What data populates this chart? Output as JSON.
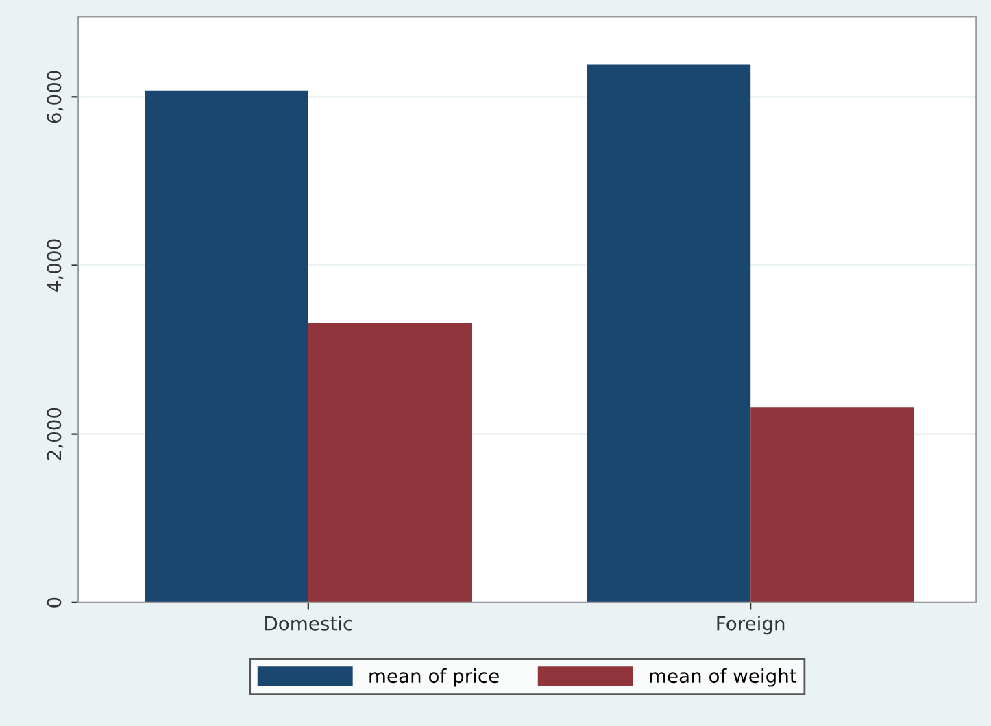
{
  "chart_data": {
    "type": "bar",
    "categories": [
      "Domestic",
      "Foreign"
    ],
    "series": [
      {
        "name": "mean of price",
        "color": "#1a476f",
        "values": [
          6070,
          6380
        ]
      },
      {
        "name": "mean of weight",
        "color": "#90353b",
        "values": [
          3320,
          2320
        ]
      }
    ],
    "ylim": [
      0,
      6950
    ],
    "yticks": [
      0,
      {
        "value": 2000,
        "label": "2,000"
      },
      {
        "value": 4000,
        "label": "4,000"
      },
      {
        "value": 6000,
        "label": "6,000"
      }
    ],
    "grid": "y",
    "legend": "bottom"
  }
}
